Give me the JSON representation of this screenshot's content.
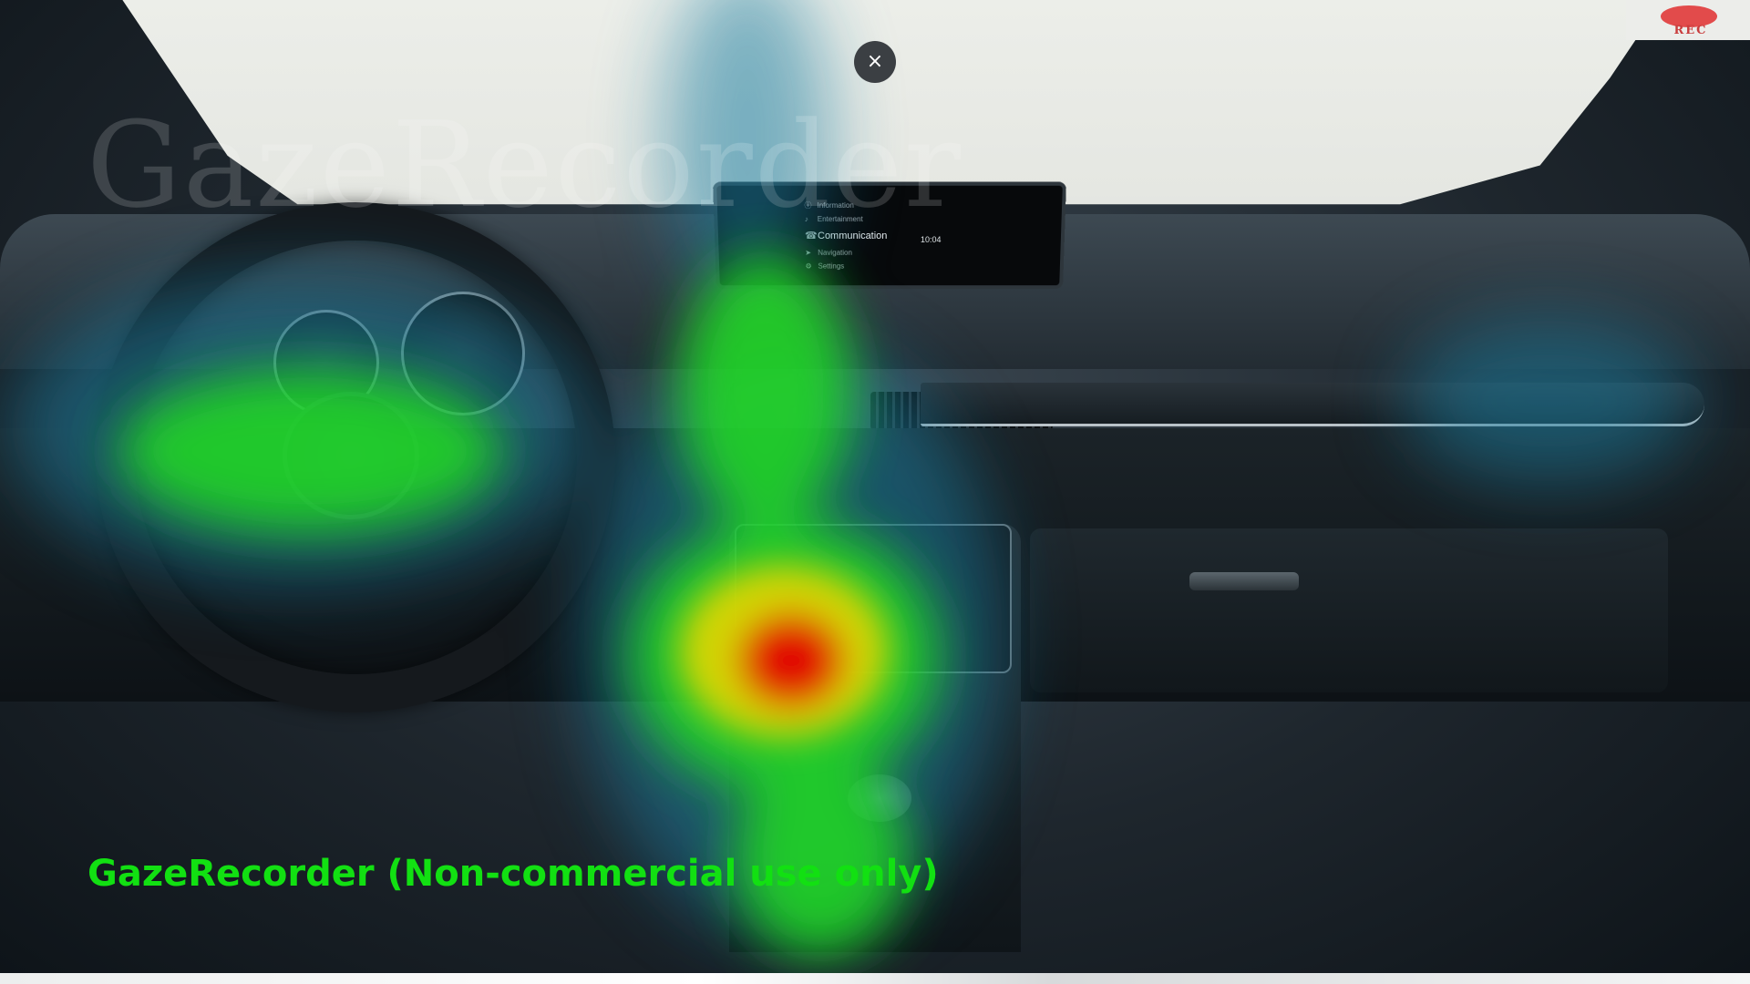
{
  "overlay": {
    "close_label": "×",
    "rec_label": "REC",
    "watermark_bg": "GazeRecorder",
    "watermark_fg": "GazeRecorder (Non-commercial use only)"
  },
  "infotainment": {
    "menu": [
      "Information",
      "Entertainment",
      "Communication",
      "Navigation",
      "Settings"
    ],
    "active_index": 2,
    "time": "10:04"
  },
  "heatmap": {
    "colors": {
      "cool": "#1a7fa0",
      "mid": "#22dd22",
      "warm": "#e6d600",
      "hot": "#e10000"
    }
  }
}
